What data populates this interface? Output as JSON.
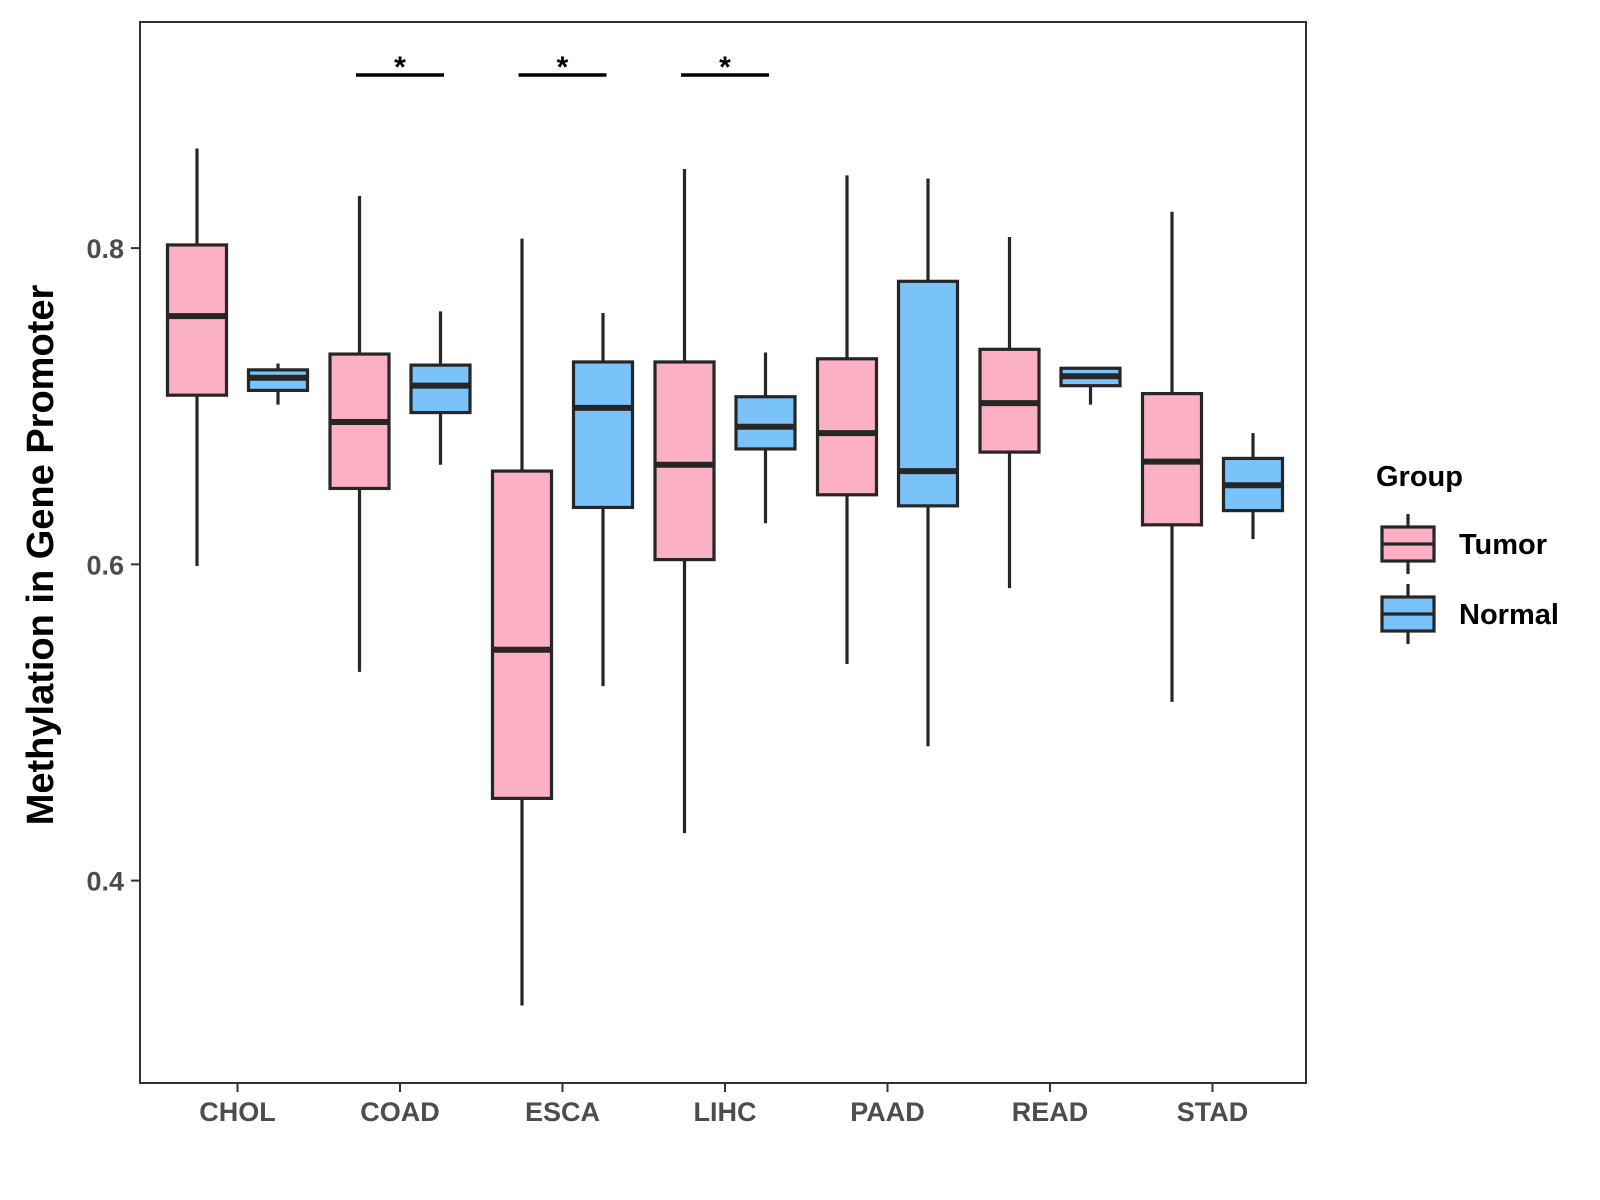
{
  "chart_data": {
    "type": "boxplot",
    "title": "",
    "xlabel": "",
    "ylabel": "Methylation in Gene Promoter",
    "ylim": [
      0.272,
      0.943
    ],
    "yticks": [
      0.4,
      0.6,
      0.8
    ],
    "ytick_labels": [
      "0.4",
      "0.6",
      "0.8"
    ],
    "categories": [
      "CHOL",
      "COAD",
      "ESCA",
      "LIHC",
      "PAAD",
      "READ",
      "STAD"
    ],
    "legend": {
      "title": "Group",
      "position": "right",
      "entries": [
        {
          "name": "Tumor",
          "color": "#fbb0c3"
        },
        {
          "name": "Normal",
          "color": "#79c2fa"
        }
      ]
    },
    "series": [
      {
        "name": "Tumor",
        "color": "#fbb0c3",
        "boxes": [
          {
            "category": "CHOL",
            "whisker_low": 0.599,
            "q1": 0.707,
            "median": 0.757,
            "q3": 0.802,
            "whisker_high": 0.863
          },
          {
            "category": "COAD",
            "whisker_low": 0.532,
            "q1": 0.648,
            "median": 0.69,
            "q3": 0.733,
            "whisker_high": 0.833
          },
          {
            "category": "ESCA",
            "whisker_low": 0.321,
            "q1": 0.452,
            "median": 0.546,
            "q3": 0.659,
            "whisker_high": 0.806
          },
          {
            "category": "LIHC",
            "whisker_low": 0.43,
            "q1": 0.603,
            "median": 0.663,
            "q3": 0.728,
            "whisker_high": 0.85
          },
          {
            "category": "PAAD",
            "whisker_low": 0.537,
            "q1": 0.644,
            "median": 0.683,
            "q3": 0.73,
            "whisker_high": 0.846
          },
          {
            "category": "READ",
            "whisker_low": 0.585,
            "q1": 0.671,
            "median": 0.702,
            "q3": 0.736,
            "whisker_high": 0.807
          },
          {
            "category": "STAD",
            "whisker_low": 0.513,
            "q1": 0.625,
            "median": 0.665,
            "q3": 0.708,
            "whisker_high": 0.823
          }
        ]
      },
      {
        "name": "Normal",
        "color": "#79c2fa",
        "boxes": [
          {
            "category": "CHOL",
            "whisker_low": 0.701,
            "q1": 0.71,
            "median": 0.718,
            "q3": 0.723,
            "whisker_high": 0.727
          },
          {
            "category": "COAD",
            "whisker_low": 0.663,
            "q1": 0.696,
            "median": 0.713,
            "q3": 0.726,
            "whisker_high": 0.76
          },
          {
            "category": "ESCA",
            "whisker_low": 0.523,
            "q1": 0.636,
            "median": 0.699,
            "q3": 0.728,
            "whisker_high": 0.759
          },
          {
            "category": "LIHC",
            "whisker_low": 0.626,
            "q1": 0.673,
            "median": 0.687,
            "q3": 0.706,
            "whisker_high": 0.734
          },
          {
            "category": "PAAD",
            "whisker_low": 0.485,
            "q1": 0.637,
            "median": 0.659,
            "q3": 0.779,
            "whisker_high": 0.844
          },
          {
            "category": "READ",
            "whisker_low": 0.701,
            "q1": 0.713,
            "median": 0.719,
            "q3": 0.724,
            "whisker_high": 0.724
          },
          {
            "category": "STAD",
            "whisker_low": 0.616,
            "q1": 0.634,
            "median": 0.65,
            "q3": 0.667,
            "whisker_high": 0.683
          }
        ]
      }
    ],
    "significance": [
      {
        "category": "COAD",
        "label": "*"
      },
      {
        "category": "ESCA",
        "label": "*"
      },
      {
        "category": "LIHC",
        "label": "*"
      }
    ]
  }
}
